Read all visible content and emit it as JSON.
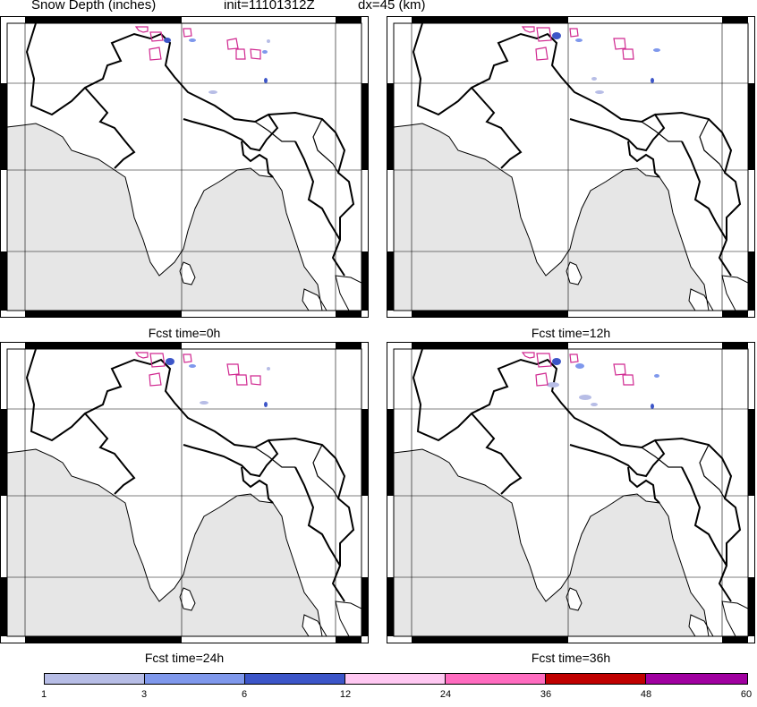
{
  "header": {
    "field": "Snow Depth (inches)",
    "init": "init=11101312Z",
    "dx": "dx=45 (km)"
  },
  "panels": [
    {
      "label": "Fcst time=0h"
    },
    {
      "label": "Fcst time=12h"
    },
    {
      "label": "Fcst time=24h"
    },
    {
      "label": "Fcst time=36h"
    }
  ],
  "colorbar": {
    "ticks": [
      "1",
      "3",
      "6",
      "12",
      "24",
      "36",
      "48",
      "60"
    ],
    "colors": [
      "#b7bde6",
      "#7f98ec",
      "#3c55c8",
      "#ffc8f2",
      "#ff6cc0",
      "#c00000",
      "#a000a0"
    ]
  },
  "colors": {
    "ocean": "#e6e6e6",
    "land": "#ffffff",
    "snow_light": "#b7bde6",
    "snow_mid": "#7f98ec",
    "snow_dark": "#3c55c8",
    "contour": "#d02890"
  }
}
